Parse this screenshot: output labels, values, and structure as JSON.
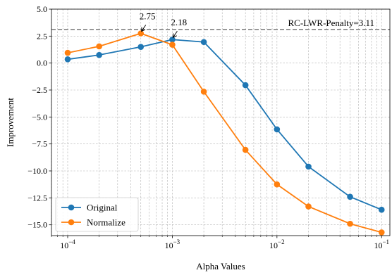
{
  "chart_data": {
    "type": "line",
    "xlabel": "Alpha Values",
    "ylabel": "Improvement",
    "xscale": "log",
    "xlim": [
      7e-05,
      0.12
    ],
    "ylim": [
      -16.0,
      5.0
    ],
    "grid": true,
    "x": [
      0.0001,
      0.0002,
      0.0005,
      0.001,
      0.002,
      0.005,
      0.01,
      0.02,
      0.05,
      0.1
    ],
    "x_ticks": [
      {
        "base": "10",
        "exp": "−4",
        "value": 0.0001
      },
      {
        "base": "10",
        "exp": "−3",
        "value": 0.001
      },
      {
        "base": "10",
        "exp": "−2",
        "value": 0.01
      },
      {
        "base": "10",
        "exp": "−1",
        "value": 0.1
      }
    ],
    "y_ticks": [
      {
        "label": "5.0",
        "value": 5.0
      },
      {
        "label": "2.5",
        "value": 2.5
      },
      {
        "label": "0.0",
        "value": 0.0
      },
      {
        "label": "−2.5",
        "value": -2.5
      },
      {
        "label": "−5.0",
        "value": -5.0
      },
      {
        "label": "−7.5",
        "value": -7.5
      },
      {
        "label": "−10.0",
        "value": -10.0
      },
      {
        "label": "−12.5",
        "value": -12.5
      },
      {
        "label": "−15.0",
        "value": -15.0
      }
    ],
    "series": [
      {
        "name": "Original",
        "color": "#1f77b4",
        "values": [
          0.35,
          0.75,
          1.5,
          2.18,
          1.95,
          -2.05,
          -6.15,
          -9.6,
          -12.4,
          -13.6
        ]
      },
      {
        "name": "Normalize",
        "color": "#ff7f0e",
        "values": [
          0.95,
          1.55,
          2.75,
          1.7,
          -2.65,
          -8.05,
          -11.25,
          -13.3,
          -14.9,
          -15.7
        ]
      }
    ],
    "reference_line": {
      "y": 3.11,
      "label": "RC-LWR-Penalty=3.11",
      "color": "#808080"
    },
    "annotations": [
      {
        "text": "2.75",
        "x": 0.0005,
        "y": 2.75
      },
      {
        "text": "2.18",
        "x": 0.001,
        "y": 2.18
      }
    ],
    "legend_position": "lower-left"
  }
}
